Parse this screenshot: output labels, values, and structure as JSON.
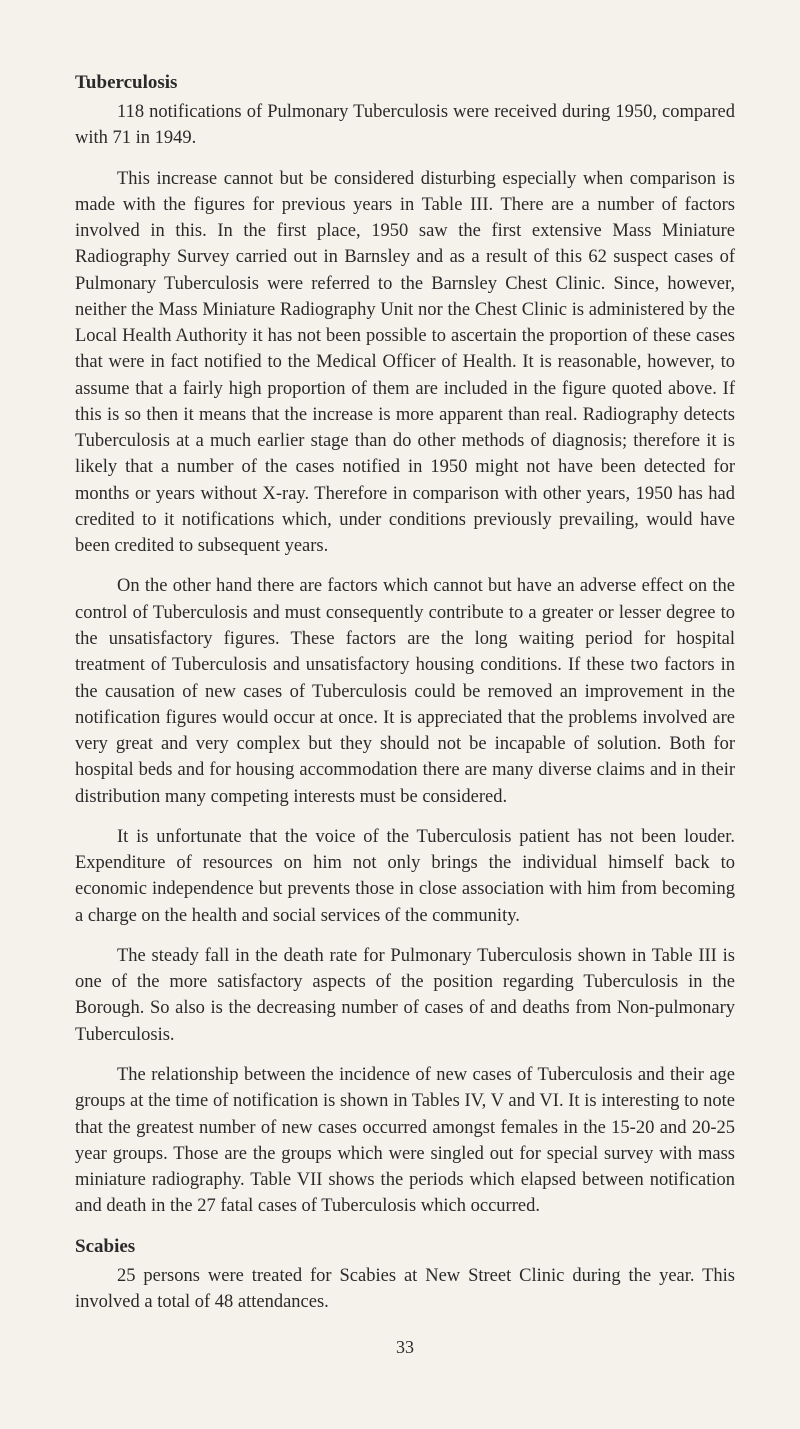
{
  "sections": {
    "tuberculosis": {
      "heading": "Tuberculosis",
      "p1": "118 notifications of Pulmonary Tuberculosis were received during 1950, compared with 71 in 1949.",
      "p2": "This increase cannot but be considered disturbing especially when comparison is made with the figures for previous years in Table III. There are a number of factors involved in this. In the first place, 1950 saw the first extensive Mass Miniature Radiography Survey carried out in Barnsley and as a result of this 62 suspect cases of Pulmonary Tuberculosis were referred to the Barnsley Chest Clinic. Since, however, neither the Mass Miniature Radiography Unit nor the Chest Clinic is administered by the Local Health Authority it has not been possible to ascertain the proportion of these cases that were in fact notified to the Medical Officer of Health. It is reasonable, however, to assume that a fairly high proportion of them are included in the figure quoted above. If this is so then it means that the increase is more apparent than real. Radiography detects Tuberculosis at a much earlier stage than do other methods of diagnosis; therefore it is likely that a number of the cases notified in 1950 might not have been detected for months or years without X-ray. Therefore in comparison with other years, 1950 has had credited to it notifications which, under conditions previously prevailing, would have been credited to subsequent years.",
      "p3": "On the other hand there are factors which cannot but have an adverse effect on the control of Tuberculosis and must consequently contribute to a greater or lesser degree to the unsatisfactory figures. These factors are the long waiting period for hospital treatment of Tuberculosis and unsatisfactory housing conditions. If these two factors in the causation of new cases of Tuberculosis could be removed an improvement in the notification figures would occur at once. It is appreciated that the problems involved are very great and very complex but they should not be incapable of solution. Both for hospital beds and for housing accommodation there are many diverse claims and in their distribution many competing interests must be considered.",
      "p4": "It is unfortunate that the voice of the Tuberculosis patient has not been louder. Expenditure of resources on him not only brings the individual himself back to economic independence but prevents those in close association with him from becoming a charge on the health and social services of the community.",
      "p5": "The steady fall in the death rate for Pulmonary Tuberculosis shown in Table III is one of the more satisfactory aspects of the position regarding Tuberculosis in the Borough. So also is the decreasing number of cases of and deaths from Non-pulmonary Tuberculosis.",
      "p6": "The relationship between the incidence of new cases of Tuberculosis and their age groups at the time of notification is shown in Tables IV, V and VI. It is interesting to note that the greatest number of new cases occurred amongst females in the 15-20 and 20-25 year groups. Those are the groups which were singled out for special survey with mass miniature radiography. Table VII shows the periods which elapsed between notification and death in the 27 fatal cases of Tuberculosis which occurred."
    },
    "scabies": {
      "heading": "Scabies",
      "p1": "25 persons were treated for Scabies at New Street Clinic during the year. This involved a total of 48 attendances."
    }
  },
  "pageNumber": "33",
  "colors": {
    "background": "#f5f2eb",
    "text": "#2a2a2a"
  },
  "typography": {
    "bodyFontSize": 18.5,
    "headingFontSize": 19,
    "lineHeight": 1.42,
    "textIndent": 42
  }
}
